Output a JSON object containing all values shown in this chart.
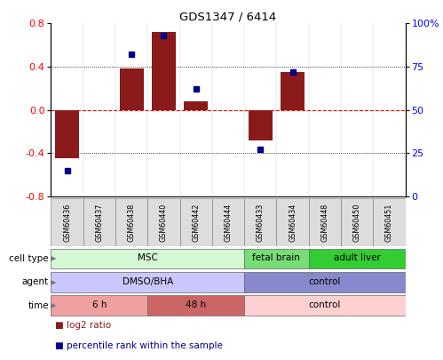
{
  "title": "GDS1347 / 6414",
  "samples": [
    "GSM60436",
    "GSM60437",
    "GSM60438",
    "GSM60440",
    "GSM60442",
    "GSM60444",
    "GSM60433",
    "GSM60434",
    "GSM60448",
    "GSM60450",
    "GSM60451"
  ],
  "log2_ratio": [
    -0.45,
    0.0,
    0.38,
    0.72,
    0.08,
    0.0,
    -0.28,
    0.35,
    0.0,
    0.0,
    0.0
  ],
  "percentile_rank": [
    15,
    50,
    82,
    93,
    62,
    50,
    27,
    72,
    50,
    50,
    50
  ],
  "show_pct_dot": [
    true,
    false,
    true,
    true,
    true,
    false,
    true,
    true,
    false,
    false,
    false
  ],
  "ylim_left": [
    -0.8,
    0.8
  ],
  "ylim_right": [
    0,
    100
  ],
  "yticks_left": [
    -0.8,
    -0.4,
    0.0,
    0.4,
    0.8
  ],
  "yticks_right": [
    0,
    25,
    50,
    75,
    100
  ],
  "yticklabels_right": [
    "0",
    "25",
    "50",
    "75",
    "100%"
  ],
  "dotted_hlines": [
    -0.4,
    0.4
  ],
  "bar_color": "#8B1A1A",
  "dot_color": "#00008B",
  "cell_type_groups": [
    {
      "label": "MSC",
      "start": 0,
      "end": 6,
      "color": "#d4f7d4",
      "border": "#666666"
    },
    {
      "label": "fetal brain",
      "start": 6,
      "end": 8,
      "color": "#77dd77",
      "border": "#666666"
    },
    {
      "label": "adult liver",
      "start": 8,
      "end": 11,
      "color": "#33cc33",
      "border": "#666666"
    }
  ],
  "agent_groups": [
    {
      "label": "DMSO/BHA",
      "start": 0,
      "end": 6,
      "color": "#c8c8ff",
      "border": "#666666"
    },
    {
      "label": "control",
      "start": 6,
      "end": 11,
      "color": "#8888cc",
      "border": "#666666"
    }
  ],
  "time_groups": [
    {
      "label": "6 h",
      "start": 0,
      "end": 3,
      "color": "#f0a0a0",
      "border": "#666666"
    },
    {
      "label": "48 h",
      "start": 3,
      "end": 6,
      "color": "#cc6666",
      "border": "#666666"
    },
    {
      "label": "control",
      "start": 6,
      "end": 11,
      "color": "#ffd0d0",
      "border": "#666666"
    }
  ],
  "row_labels": [
    "cell type",
    "agent",
    "time"
  ],
  "legend_items": [
    {
      "label": "log2 ratio",
      "color": "#8B1A1A"
    },
    {
      "label": "percentile rank within the sample",
      "color": "#00008B"
    }
  ],
  "sample_bg_color": "#dddddd",
  "sample_border_color": "#888888"
}
